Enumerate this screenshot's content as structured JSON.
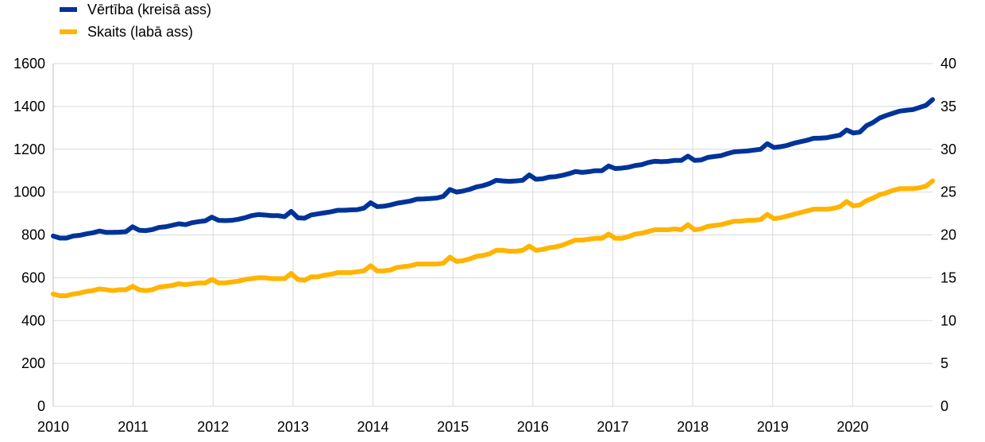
{
  "chart_data": {
    "type": "line",
    "x_start_year": 2010,
    "x_end_year": 2021,
    "x_tick_labels": [
      "2010",
      "2011",
      "2012",
      "2013",
      "2014",
      "2015",
      "2016",
      "2017",
      "2018",
      "2019",
      "2020"
    ],
    "y_left": {
      "ylim": [
        0,
        1600
      ],
      "ticks": [
        0,
        200,
        400,
        600,
        800,
        1000,
        1200,
        1400,
        1600
      ]
    },
    "y_right": {
      "ylim": [
        0,
        40
      ],
      "ticks": [
        0,
        5,
        10,
        15,
        20,
        25,
        30,
        35,
        40
      ]
    },
    "grid": "horizontal",
    "legend_position": "top-left",
    "series": [
      {
        "name": "Vērtība (kreisā ass)",
        "axis": "left",
        "color": "#003399",
        "values": [
          795,
          785,
          785,
          795,
          798,
          805,
          810,
          818,
          812,
          812,
          813,
          815,
          838,
          822,
          820,
          825,
          835,
          838,
          845,
          852,
          848,
          857,
          862,
          866,
          883,
          868,
          867,
          868,
          873,
          880,
          890,
          895,
          893,
          890,
          890,
          885,
          910,
          880,
          878,
          893,
          898,
          903,
          908,
          915,
          915,
          917,
          918,
          925,
          950,
          932,
          934,
          940,
          948,
          953,
          958,
          967,
          968,
          970,
          972,
          980,
          1012,
          1000,
          1005,
          1013,
          1024,
          1030,
          1040,
          1055,
          1052,
          1050,
          1052,
          1055,
          1080,
          1060,
          1062,
          1070,
          1072,
          1078,
          1086,
          1096,
          1092,
          1095,
          1100,
          1100,
          1122,
          1110,
          1112,
          1116,
          1124,
          1128,
          1138,
          1144,
          1142,
          1144,
          1148,
          1148,
          1168,
          1148,
          1150,
          1162,
          1166,
          1170,
          1180,
          1188,
          1190,
          1192,
          1196,
          1200,
          1226,
          1208,
          1212,
          1218,
          1228,
          1235,
          1242,
          1251,
          1252,
          1254,
          1260,
          1266,
          1290,
          1276,
          1280,
          1310,
          1325,
          1346,
          1358,
          1368,
          1378,
          1382,
          1385,
          1395,
          1405,
          1432
        ]
      },
      {
        "name": "Skaits (labā ass)",
        "axis": "right",
        "color": "#FFB400",
        "values": [
          13.1,
          12.9,
          12.9,
          13.1,
          13.2,
          13.4,
          13.5,
          13.7,
          13.6,
          13.5,
          13.6,
          13.6,
          14.0,
          13.6,
          13.5,
          13.6,
          13.9,
          14.0,
          14.1,
          14.3,
          14.2,
          14.3,
          14.4,
          14.4,
          14.8,
          14.4,
          14.4,
          14.5,
          14.6,
          14.8,
          14.9,
          15.0,
          15.0,
          14.9,
          14.9,
          14.9,
          15.5,
          14.8,
          14.7,
          15.1,
          15.1,
          15.3,
          15.4,
          15.6,
          15.6,
          15.6,
          15.7,
          15.8,
          16.4,
          15.8,
          15.8,
          15.9,
          16.2,
          16.3,
          16.4,
          16.6,
          16.6,
          16.6,
          16.6,
          16.7,
          17.4,
          16.9,
          17.0,
          17.2,
          17.5,
          17.6,
          17.8,
          18.2,
          18.2,
          18.1,
          18.1,
          18.2,
          18.7,
          18.2,
          18.3,
          18.5,
          18.6,
          18.8,
          19.1,
          19.4,
          19.4,
          19.5,
          19.6,
          19.6,
          20.1,
          19.6,
          19.6,
          19.8,
          20.1,
          20.2,
          20.4,
          20.6,
          20.6,
          20.6,
          20.7,
          20.6,
          21.2,
          20.6,
          20.7,
          21.0,
          21.1,
          21.2,
          21.4,
          21.6,
          21.6,
          21.7,
          21.7,
          21.8,
          22.4,
          21.9,
          22.0,
          22.2,
          22.4,
          22.6,
          22.8,
          23.0,
          23.0,
          23.0,
          23.1,
          23.3,
          23.9,
          23.4,
          23.5,
          24.0,
          24.3,
          24.7,
          24.9,
          25.2,
          25.4,
          25.4,
          25.4,
          25.5,
          25.7,
          26.3
        ]
      }
    ]
  }
}
